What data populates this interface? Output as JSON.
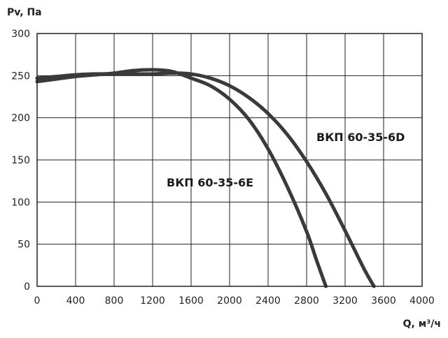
{
  "chart_data": {
    "type": "line",
    "xlabel": "Q, м³/ч",
    "ylabel": "Pv, Па",
    "xlim": [
      0,
      4000
    ],
    "ylim": [
      0,
      300
    ],
    "xticks": [
      0,
      400,
      800,
      1200,
      1600,
      2000,
      2400,
      2800,
      3200,
      3600,
      4000
    ],
    "yticks": [
      0,
      50,
      100,
      150,
      200,
      250,
      300
    ],
    "grid": true,
    "series": [
      {
        "name": "ВКП 60-35-6E",
        "color": "#3a3a3a",
        "x": [
          0,
          200,
          400,
          600,
          800,
          1000,
          1200,
          1400,
          1600,
          1800,
          2000,
          2200,
          2400,
          2600,
          2800,
          2900,
          3000
        ],
        "y": [
          243,
          246,
          249,
          251,
          253,
          256,
          257,
          255,
          247,
          238,
          222,
          198,
          163,
          118,
          65,
          32,
          0
        ]
      },
      {
        "name": "ВКП 60-35-6D",
        "color": "#3a3a3a",
        "x": [
          0,
          200,
          400,
          600,
          800,
          1000,
          1200,
          1400,
          1600,
          1800,
          2000,
          2200,
          2400,
          2600,
          2800,
          3000,
          3200,
          3400,
          3500
        ],
        "y": [
          247,
          249,
          251,
          252,
          252,
          252,
          252,
          253,
          252,
          247,
          238,
          224,
          205,
          180,
          148,
          110,
          66,
          20,
          0
        ]
      }
    ]
  }
}
